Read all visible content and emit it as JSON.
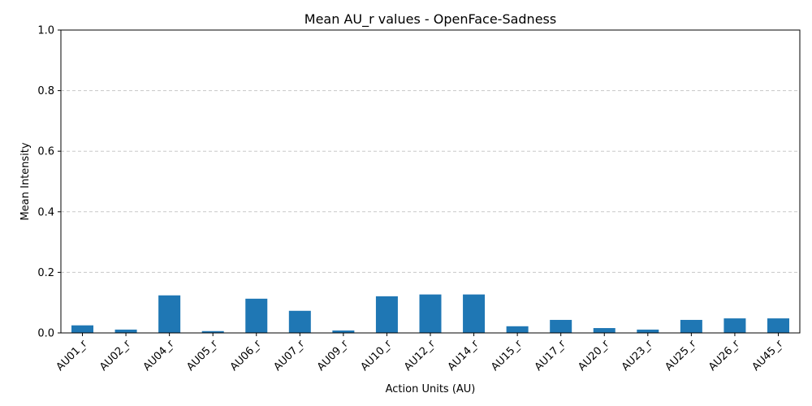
{
  "chart_data": {
    "type": "bar",
    "title": "Mean AU_r values - OpenFace-Sadness",
    "xlabel": "Action Units (AU)",
    "ylabel": "Mean Intensity",
    "ylim": [
      0,
      1.0
    ],
    "yticks": [
      "0.0",
      "0.2",
      "0.4",
      "0.6",
      "0.8",
      "1.0"
    ],
    "grid": "y-dashed",
    "bar_color": "#1f77b4",
    "categories": [
      "AU01_r",
      "AU02_r",
      "AU04_r",
      "AU05_r",
      "AU06_r",
      "AU07_r",
      "AU09_r",
      "AU10_r",
      "AU12_r",
      "AU14_r",
      "AU15_r",
      "AU17_r",
      "AU20_r",
      "AU23_r",
      "AU25_r",
      "AU26_r",
      "AU45_r"
    ],
    "values": [
      0.025,
      0.011,
      0.124,
      0.006,
      0.113,
      0.073,
      0.008,
      0.121,
      0.127,
      0.127,
      0.022,
      0.043,
      0.016,
      0.011,
      0.043,
      0.048,
      0.048
    ]
  }
}
